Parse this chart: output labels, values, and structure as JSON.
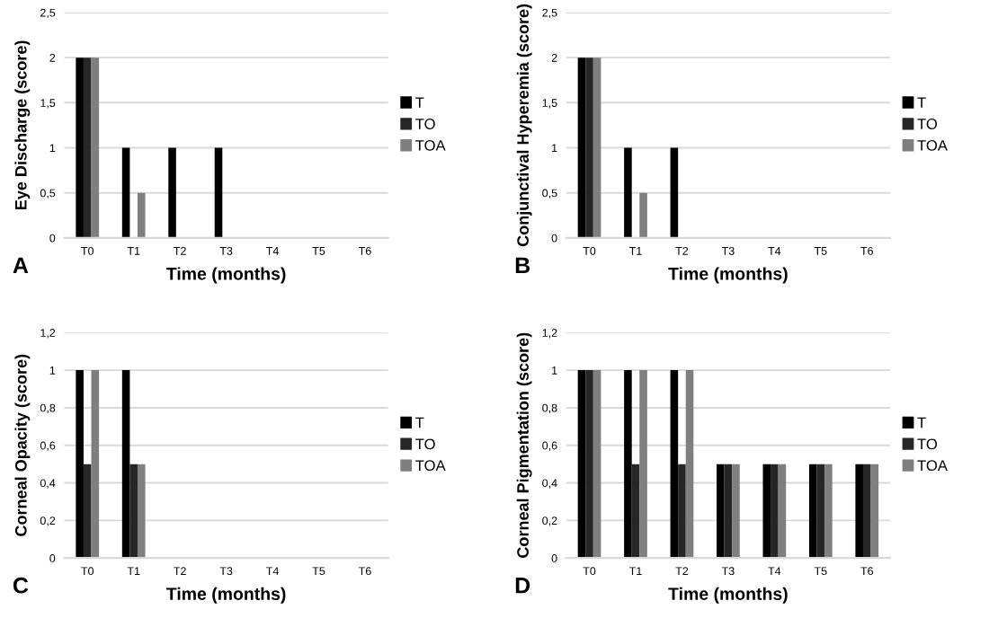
{
  "chart_data": [
    {
      "type": "bar",
      "ylabel": "Eye Discharge (score)",
      "xlabel": "Time (months)",
      "annotations": [
        "A"
      ],
      "categories": [
        "T0",
        "T1",
        "T2",
        "T3",
        "T4",
        "T5",
        "T6"
      ],
      "series": [
        {
          "name": "T",
          "color": "#000000",
          "values": [
            2,
            1,
            1,
            1,
            0,
            0,
            0
          ]
        },
        {
          "name": "TO",
          "color": "#262626",
          "values": [
            2,
            0,
            0,
            0,
            0,
            0,
            0
          ]
        },
        {
          "name": "TOA",
          "color": "#7f7f7f",
          "values": [
            2,
            0.5,
            0,
            0,
            0,
            0,
            0
          ]
        }
      ],
      "ylim": [
        0,
        2.5
      ],
      "yticks": [
        0,
        {
          "value": 0.5,
          "label": "0,5"
        },
        1,
        {
          "value": 1.5,
          "label": "1,5"
        },
        2,
        {
          "value": 2.5,
          "label": "2,5"
        }
      ],
      "grid": "y",
      "legend": "right"
    },
    {
      "type": "bar",
      "ylabel": "Conjunctival Hyperemia (score)",
      "xlabel": "Time (months)",
      "annotations": [
        "B"
      ],
      "categories": [
        "T0",
        "T1",
        "T2",
        "T3",
        "T4",
        "T5",
        "T6"
      ],
      "series": [
        {
          "name": "T",
          "color": "#000000",
          "values": [
            2,
            1,
            1,
            0,
            0,
            0,
            0
          ]
        },
        {
          "name": "TO",
          "color": "#262626",
          "values": [
            2,
            0,
            0,
            0,
            0,
            0,
            0
          ]
        },
        {
          "name": "TOA",
          "color": "#7f7f7f",
          "values": [
            2,
            0.5,
            0,
            0,
            0,
            0,
            0
          ]
        }
      ],
      "ylim": [
        0,
        2.5
      ],
      "yticks": [
        0,
        {
          "value": 0.5,
          "label": "0,5"
        },
        1,
        {
          "value": 1.5,
          "label": "1,5"
        },
        2,
        {
          "value": 2.5,
          "label": "2,5"
        }
      ],
      "grid": "y",
      "legend": "right"
    },
    {
      "type": "bar",
      "ylabel": "Corneal Opacity (score)",
      "xlabel": "Time (months)",
      "annotations": [
        "C"
      ],
      "categories": [
        "T0",
        "T1",
        "T2",
        "T3",
        "T4",
        "T5",
        "T6"
      ],
      "series": [
        {
          "name": "T",
          "color": "#000000",
          "values": [
            1,
            1,
            0,
            0,
            0,
            0,
            0
          ]
        },
        {
          "name": "TO",
          "color": "#262626",
          "values": [
            0.5,
            0.5,
            0,
            0,
            0,
            0,
            0
          ]
        },
        {
          "name": "TOA",
          "color": "#7f7f7f",
          "values": [
            1,
            0.5,
            0,
            0,
            0,
            0,
            0
          ]
        }
      ],
      "ylim": [
        0,
        1.2
      ],
      "yticks": [
        0,
        {
          "value": 0.2,
          "label": "0,2"
        },
        {
          "value": 0.4,
          "label": "0,4"
        },
        {
          "value": 0.6,
          "label": "0,6"
        },
        {
          "value": 0.8,
          "label": "0,8"
        },
        1,
        {
          "value": 1.2,
          "label": "1,2"
        }
      ],
      "grid": "y",
      "legend": "right"
    },
    {
      "type": "bar",
      "ylabel": "Corneal Pigmentation (score)",
      "xlabel": "Time (months)",
      "annotations": [
        "D"
      ],
      "categories": [
        "T0",
        "T1",
        "T2",
        "T3",
        "T4",
        "T5",
        "T6"
      ],
      "series": [
        {
          "name": "T",
          "color": "#000000",
          "values": [
            1,
            1,
            1,
            0.5,
            0.5,
            0.5,
            0.5
          ]
        },
        {
          "name": "TO",
          "color": "#262626",
          "values": [
            1,
            0.5,
            0.5,
            0.5,
            0.5,
            0.5,
            0.5
          ]
        },
        {
          "name": "TOA",
          "color": "#7f7f7f",
          "values": [
            1,
            1,
            1,
            0.5,
            0.5,
            0.5,
            0.5
          ]
        }
      ],
      "ylim": [
        0,
        1.2
      ],
      "yticks": [
        0,
        {
          "value": 0.2,
          "label": "0,2"
        },
        {
          "value": 0.4,
          "label": "0,4"
        },
        {
          "value": 0.6,
          "label": "0,6"
        },
        {
          "value": 0.8,
          "label": "0,8"
        },
        1,
        {
          "value": 1.2,
          "label": "1,2"
        }
      ],
      "grid": "y",
      "legend": "right"
    }
  ]
}
